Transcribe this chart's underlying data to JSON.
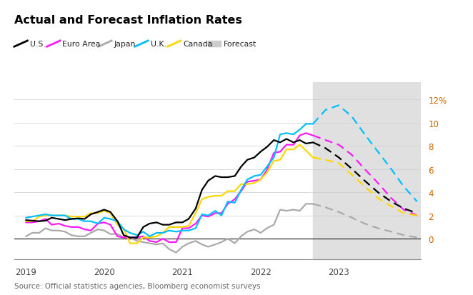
{
  "title": "Actual and Forecast Inflation Rates",
  "source": "Source: Official statistics agencies, Bloomberg economist surveys",
  "background_color": "#ffffff",
  "forecast_bg_color": "#e0e0e0",
  "forecast_start": 2022.67,
  "x_ticks": [
    2019,
    2020,
    2021,
    2022,
    2023
  ],
  "y_ticks": [
    0,
    2,
    4,
    6,
    8,
    10,
    12
  ],
  "ylim": [
    -1.8,
    13.5
  ],
  "xlim": [
    2018.85,
    2024.05
  ],
  "series": {
    "US": {
      "color": "#000000",
      "actual_x": [
        2019.0,
        2019.08,
        2019.17,
        2019.25,
        2019.33,
        2019.42,
        2019.5,
        2019.58,
        2019.67,
        2019.75,
        2019.83,
        2019.92,
        2020.0,
        2020.08,
        2020.17,
        2020.25,
        2020.33,
        2020.42,
        2020.5,
        2020.58,
        2020.67,
        2020.75,
        2020.83,
        2020.92,
        2021.0,
        2021.08,
        2021.17,
        2021.25,
        2021.33,
        2021.42,
        2021.5,
        2021.58,
        2021.67,
        2021.75,
        2021.83,
        2021.92,
        2022.0,
        2022.08,
        2022.17,
        2022.25,
        2022.33,
        2022.42,
        2022.5,
        2022.58,
        2022.67
      ],
      "actual_y": [
        1.6,
        1.55,
        1.5,
        1.55,
        1.8,
        1.7,
        1.6,
        1.7,
        1.75,
        1.7,
        2.1,
        2.3,
        2.5,
        2.3,
        1.5,
        0.3,
        0.1,
        0.1,
        1.0,
        1.3,
        1.4,
        1.2,
        1.2,
        1.4,
        1.4,
        1.7,
        2.6,
        4.2,
        5.0,
        5.4,
        5.3,
        5.3,
        5.4,
        6.2,
        6.8,
        7.0,
        7.5,
        7.9,
        8.5,
        8.3,
        8.6,
        8.3,
        8.5,
        8.2,
        8.3
      ],
      "forecast_x": [
        2022.67,
        2022.83,
        2023.0,
        2023.17,
        2023.33,
        2023.5,
        2023.67,
        2023.83,
        2024.0
      ],
      "forecast_y": [
        8.3,
        7.8,
        7.0,
        6.0,
        5.0,
        4.0,
        3.2,
        2.6,
        2.2
      ]
    },
    "EuroArea": {
      "color": "#ff1aff",
      "actual_x": [
        2019.0,
        2019.08,
        2019.17,
        2019.25,
        2019.33,
        2019.42,
        2019.5,
        2019.58,
        2019.67,
        2019.75,
        2019.83,
        2019.92,
        2020.0,
        2020.08,
        2020.17,
        2020.25,
        2020.33,
        2020.42,
        2020.5,
        2020.58,
        2020.67,
        2020.75,
        2020.83,
        2020.92,
        2021.0,
        2021.08,
        2021.17,
        2021.25,
        2021.33,
        2021.42,
        2021.5,
        2021.58,
        2021.67,
        2021.75,
        2021.83,
        2021.92,
        2022.0,
        2022.08,
        2022.17,
        2022.25,
        2022.33,
        2022.42,
        2022.5,
        2022.58,
        2022.67
      ],
      "actual_y": [
        1.4,
        1.4,
        1.5,
        1.7,
        1.2,
        1.3,
        1.1,
        1.0,
        1.0,
        0.8,
        0.7,
        1.3,
        1.4,
        1.2,
        0.2,
        0.1,
        0.1,
        0.1,
        0.2,
        -0.2,
        -0.3,
        0.0,
        -0.3,
        -0.3,
        0.9,
        0.9,
        1.3,
        2.0,
        1.9,
        2.2,
        2.2,
        3.0,
        3.4,
        4.1,
        4.9,
        5.0,
        5.1,
        5.9,
        7.4,
        7.5,
        8.1,
        8.1,
        8.9,
        9.1,
        8.9
      ],
      "forecast_x": [
        2022.67,
        2022.83,
        2023.0,
        2023.17,
        2023.33,
        2023.5,
        2023.67,
        2023.83,
        2024.0
      ],
      "forecast_y": [
        8.9,
        8.5,
        8.1,
        7.2,
        6.0,
        4.8,
        3.5,
        2.5,
        2.0
      ]
    },
    "Japan": {
      "color": "#aaaaaa",
      "actual_x": [
        2019.0,
        2019.08,
        2019.17,
        2019.25,
        2019.33,
        2019.42,
        2019.5,
        2019.58,
        2019.67,
        2019.75,
        2019.83,
        2019.92,
        2020.0,
        2020.08,
        2020.17,
        2020.25,
        2020.33,
        2020.42,
        2020.5,
        2020.58,
        2020.67,
        2020.75,
        2020.83,
        2020.92,
        2021.0,
        2021.08,
        2021.17,
        2021.25,
        2021.33,
        2021.42,
        2021.5,
        2021.58,
        2021.67,
        2021.75,
        2021.83,
        2021.92,
        2022.0,
        2022.08,
        2022.17,
        2022.25,
        2022.33,
        2022.42,
        2022.5,
        2022.58,
        2022.67
      ],
      "actual_y": [
        0.2,
        0.5,
        0.5,
        0.9,
        0.7,
        0.7,
        0.6,
        0.3,
        0.2,
        0.2,
        0.5,
        0.8,
        0.7,
        0.4,
        0.4,
        0.1,
        0.1,
        -0.2,
        -0.3,
        -0.4,
        -0.5,
        -0.4,
        -0.9,
        -1.2,
        -0.7,
        -0.4,
        -0.2,
        -0.5,
        -0.7,
        -0.5,
        -0.3,
        0.0,
        -0.4,
        0.2,
        0.6,
        0.8,
        0.5,
        0.9,
        1.2,
        2.5,
        2.4,
        2.5,
        2.4,
        3.0,
        3.0
      ],
      "forecast_x": [
        2022.67,
        2022.83,
        2023.0,
        2023.17,
        2023.33,
        2023.5,
        2023.67,
        2023.83,
        2024.0
      ],
      "forecast_y": [
        3.0,
        2.7,
        2.3,
        1.8,
        1.3,
        0.9,
        0.6,
        0.3,
        0.1
      ]
    },
    "UK": {
      "color": "#00bfff",
      "actual_x": [
        2019.0,
        2019.08,
        2019.17,
        2019.25,
        2019.33,
        2019.42,
        2019.5,
        2019.58,
        2019.67,
        2019.75,
        2019.83,
        2019.92,
        2020.0,
        2020.08,
        2020.17,
        2020.25,
        2020.33,
        2020.42,
        2020.5,
        2020.58,
        2020.67,
        2020.75,
        2020.83,
        2020.92,
        2021.0,
        2021.08,
        2021.17,
        2021.25,
        2021.33,
        2021.42,
        2021.5,
        2021.58,
        2021.67,
        2021.75,
        2021.83,
        2021.92,
        2022.0,
        2022.08,
        2022.17,
        2022.25,
        2022.33,
        2022.42,
        2022.5,
        2022.58,
        2022.67
      ],
      "actual_y": [
        1.8,
        1.9,
        2.0,
        2.1,
        2.0,
        2.0,
        2.0,
        1.7,
        1.7,
        1.5,
        1.5,
        1.3,
        1.8,
        1.7,
        1.5,
        0.8,
        0.5,
        0.3,
        0.6,
        0.2,
        0.5,
        0.5,
        0.7,
        0.6,
        0.7,
        0.7,
        0.9,
        2.1,
        2.0,
        2.4,
        2.0,
        3.2,
        3.1,
        4.2,
        5.1,
        5.4,
        5.5,
        6.2,
        7.0,
        9.0,
        9.1,
        9.0,
        9.4,
        9.9,
        9.9
      ],
      "forecast_x": [
        2022.67,
        2022.83,
        2023.0,
        2023.17,
        2023.33,
        2023.5,
        2023.67,
        2023.83,
        2024.0
      ],
      "forecast_y": [
        9.9,
        11.1,
        11.5,
        10.5,
        9.0,
        7.5,
        6.0,
        4.5,
        3.2
      ]
    },
    "Canada": {
      "color": "#ffd700",
      "actual_x": [
        2019.0,
        2019.08,
        2019.17,
        2019.25,
        2019.33,
        2019.42,
        2019.5,
        2019.58,
        2019.67,
        2019.75,
        2019.83,
        2019.92,
        2020.0,
        2020.08,
        2020.17,
        2020.25,
        2020.33,
        2020.42,
        2020.5,
        2020.58,
        2020.67,
        2020.75,
        2020.83,
        2020.92,
        2021.0,
        2021.08,
        2021.17,
        2021.25,
        2021.33,
        2021.42,
        2021.5,
        2021.58,
        2021.67,
        2021.75,
        2021.83,
        2021.92,
        2022.0,
        2022.08,
        2022.17,
        2022.25,
        2022.33,
        2022.42,
        2022.5,
        2022.58,
        2022.67
      ],
      "actual_y": [
        1.5,
        1.5,
        1.9,
        2.0,
        2.0,
        2.0,
        2.0,
        1.9,
        1.9,
        1.9,
        2.2,
        2.2,
        2.4,
        2.2,
        1.2,
        0.9,
        -0.4,
        -0.4,
        0.1,
        0.1,
        0.2,
        0.5,
        1.0,
        1.0,
        1.0,
        1.1,
        2.2,
        3.4,
        3.6,
        3.7,
        3.7,
        4.1,
        4.1,
        4.7,
        4.7,
        4.8,
        5.1,
        5.7,
        6.7,
        6.8,
        7.7,
        7.7,
        8.1,
        7.6,
        7.0
      ],
      "forecast_x": [
        2022.67,
        2022.83,
        2023.0,
        2023.17,
        2023.33,
        2023.5,
        2023.67,
        2023.83,
        2024.0
      ],
      "forecast_y": [
        7.0,
        6.8,
        6.5,
        5.5,
        4.5,
        3.5,
        2.8,
        2.2,
        2.0
      ]
    }
  },
  "legend_labels": [
    "U.S.",
    "Euro Area",
    "Japan",
    "U.K.",
    "Canada",
    "Forecast"
  ],
  "legend_colors": [
    "#000000",
    "#ff1aff",
    "#aaaaaa",
    "#00bfff",
    "#ffd700",
    "#cccccc"
  ],
  "ytick_color": "#cc6600",
  "xtick_color": "#444444",
  "grid_color": "#cccccc",
  "spine_bottom_color": "#888888",
  "zero_line_color": "#333333"
}
